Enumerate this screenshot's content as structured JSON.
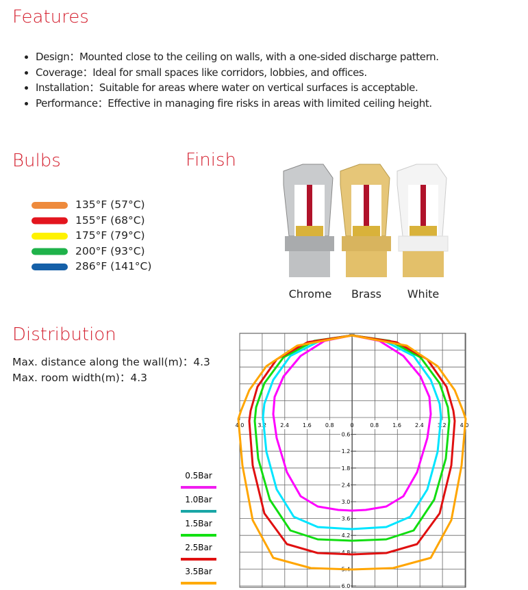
{
  "features": {
    "title": "Features",
    "items": [
      "Design：Mounted close to the ceiling on walls, with a one-sided discharge pattern.",
      "Coverage：Ideal for small spaces like corridors, lobbies, and offices.",
      "Installation：Suitable for areas where water on vertical surfaces is acceptable.",
      "Performance：Effective in managing fire risks in areas with limited ceiling height."
    ]
  },
  "bulbs": {
    "title": "Bulbs",
    "items": [
      {
        "label": "135°F (57°C)",
        "color": "#ee8a3c"
      },
      {
        "label": "155°F (68°C)",
        "color": "#e3151e"
      },
      {
        "label": "175°F (79°C)",
        "color": "#fff200"
      },
      {
        "label": "200°F (93°C)",
        "color": "#1fb24a"
      },
      {
        "label": "286°F (141°C)",
        "color": "#1560a8"
      }
    ]
  },
  "finish": {
    "title": "Finish",
    "items": [
      "Chrome",
      "Brass",
      "White"
    ]
  },
  "distribution": {
    "title": "Distribution",
    "lines": [
      "Max. distance along the wall(m)：4.3",
      "Max. room width(m)：4.3"
    ],
    "diagram": {
      "x_labels": [
        "4.0",
        "3.2",
        "2.4",
        "1.6",
        "0.8",
        "0",
        "0.8",
        "1.6",
        "2.4",
        "3.2",
        "4.0"
      ],
      "y_labels": [
        "0.6",
        "1.2",
        "1.8",
        "2.4",
        "3.0",
        "3.6",
        "4.2",
        "4.8",
        "5.4",
        "6.0"
      ],
      "legend": [
        {
          "label": "0.5Bar",
          "color": "#f01ef0"
        },
        {
          "label": "1.0Bar",
          "color": "#19a6a6"
        },
        {
          "label": "1.5Bar",
          "color": "#12e012"
        },
        {
          "label": "2.5Bar",
          "color": "#e01010"
        },
        {
          "label": "3.5Bar",
          "color": "#ffaa00"
        }
      ]
    }
  }
}
